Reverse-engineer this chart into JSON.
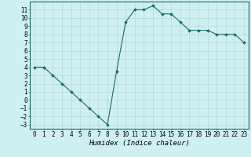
{
  "x": [
    0,
    1,
    2,
    3,
    4,
    5,
    6,
    7,
    8,
    9,
    10,
    11,
    12,
    13,
    14,
    15,
    16,
    17,
    18,
    19,
    20,
    21,
    22,
    23
  ],
  "y": [
    4.0,
    4.0,
    3.0,
    2.0,
    1.0,
    0.0,
    -1.0,
    -2.0,
    -3.0,
    3.5,
    9.5,
    11.0,
    11.0,
    11.5,
    10.5,
    10.5,
    9.5,
    8.5,
    8.5,
    8.5,
    8.0,
    8.0,
    8.0,
    7.0
  ],
  "line_color": "#1a6b6b",
  "marker": "D",
  "marker_size": 1.8,
  "bg_color": "#cff0f0",
  "grid_color": "#b8d8d8",
  "xlabel": "Humidex (Indice chaleur)",
  "xlabel_fontsize": 6.5,
  "tick_fontsize": 5.5,
  "xlim": [
    -0.5,
    23.5
  ],
  "ylim": [
    -3.5,
    12.0
  ],
  "yticks": [
    -3,
    -2,
    -1,
    0,
    1,
    2,
    3,
    4,
    5,
    6,
    7,
    8,
    9,
    10,
    11
  ],
  "xticks": [
    0,
    1,
    2,
    3,
    4,
    5,
    6,
    7,
    8,
    9,
    10,
    11,
    12,
    13,
    14,
    15,
    16,
    17,
    18,
    19,
    20,
    21,
    22,
    23
  ]
}
